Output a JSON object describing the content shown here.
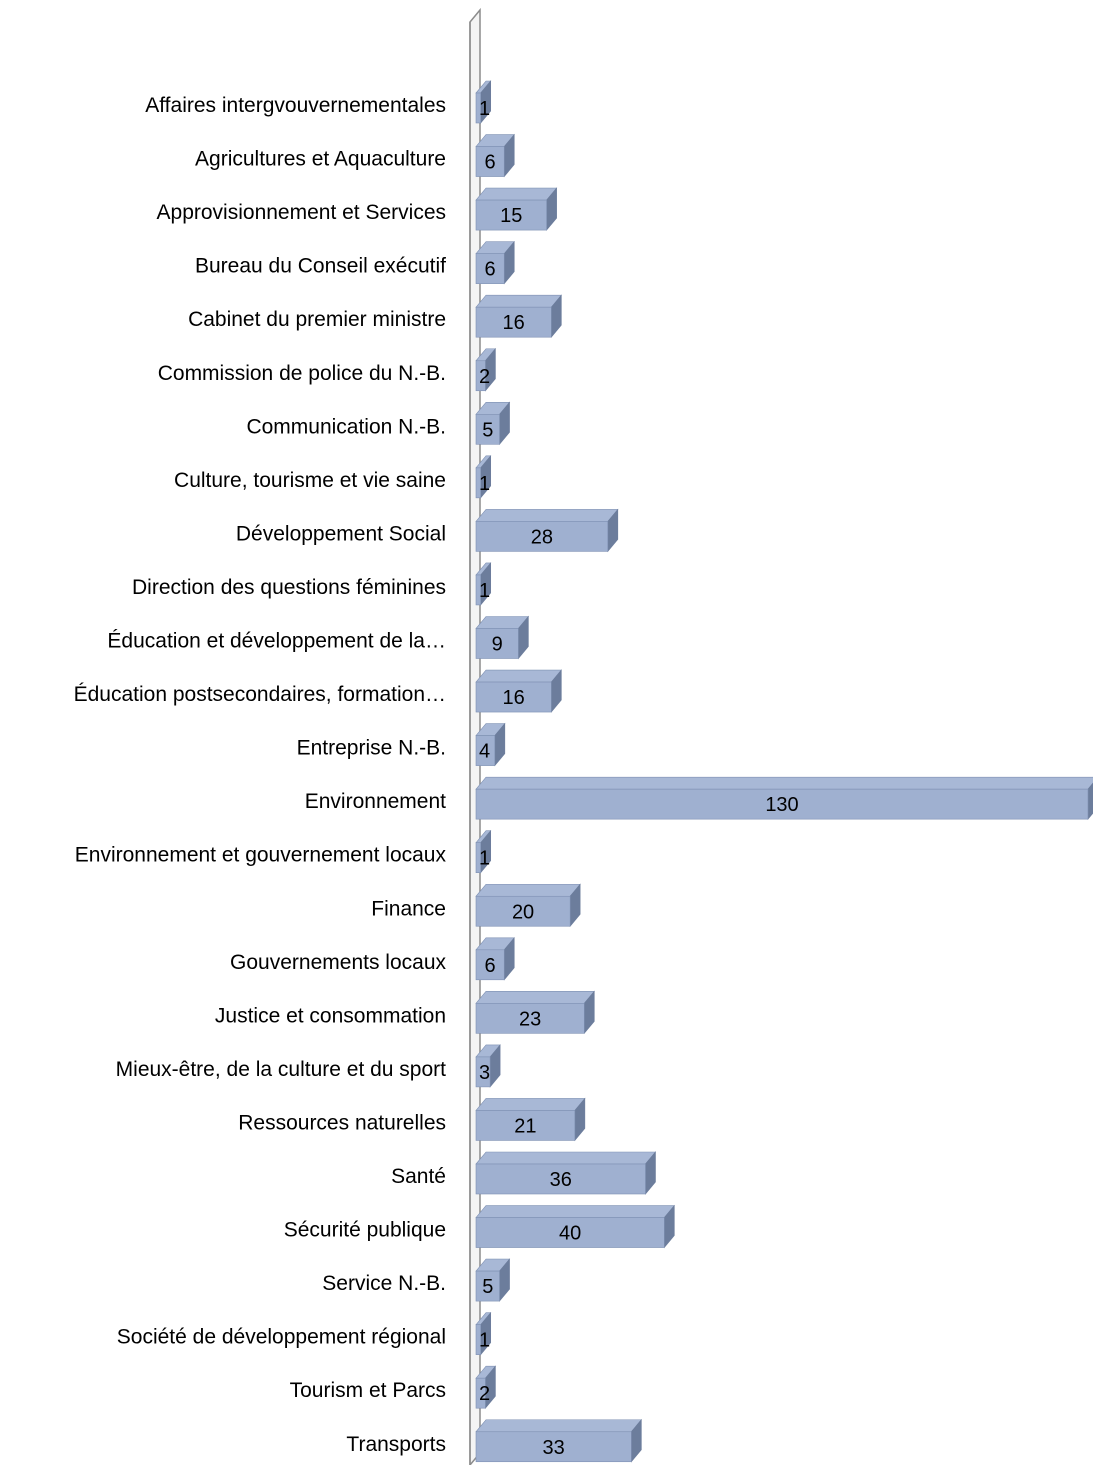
{
  "chart_data": {
    "type": "bar",
    "orientation": "horizontal",
    "style": "3d",
    "title": "",
    "xlabel": "",
    "ylabel": "",
    "xlim": [
      0,
      130
    ],
    "grid": false,
    "legend": "none",
    "colors": {
      "bar_front": "#9fb0d0",
      "bar_top": "#a8b8d6",
      "bar_side": "#6c7d9c",
      "bar_stroke": "#7f91b3",
      "axis": "#8c8c8c"
    },
    "categories": [
      "Affaires intergvouvernementales",
      "Agricultures et Aquaculture",
      "Approvisionnement et Services",
      "Bureau du Conseil exécutif",
      "Cabinet du premier ministre",
      "Commission de police du N.-B.",
      "Communication N.-B.",
      "Culture, tourisme et vie saine",
      "Développement Social",
      "Direction des questions féminines",
      "Éducation et développement de la…",
      "Éducation postsecondaires, formation…",
      "Entreprise N.-B.",
      "Environnement",
      "Environnement et gouvernement locaux",
      "Finance",
      "Gouvernements locaux",
      "Justice et consommation",
      "Mieux-être, de la culture et du sport",
      "Ressources naturelles",
      "Santé",
      "Sécurité publique",
      "Service N.-B.",
      "Société de développement régional",
      "Tourism et Parcs",
      "Transports"
    ],
    "values": [
      1,
      6,
      15,
      6,
      16,
      2,
      5,
      1,
      28,
      1,
      9,
      16,
      4,
      130,
      1,
      20,
      6,
      23,
      3,
      21,
      36,
      40,
      5,
      1,
      2,
      33
    ]
  }
}
